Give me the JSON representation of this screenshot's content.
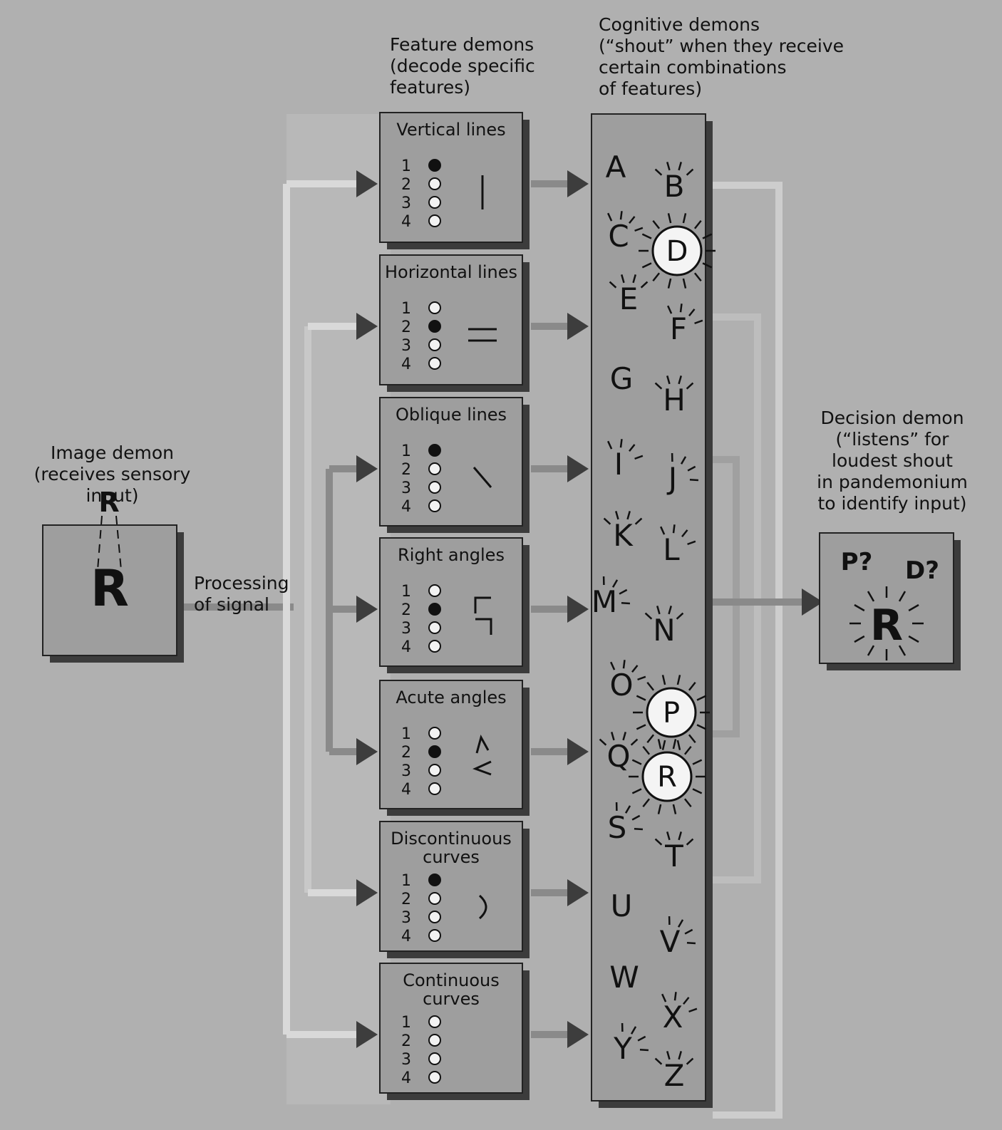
{
  "image_demon": {
    "label_line1": "Image demon",
    "label_line2": "(receives sensory input)",
    "letter": "R"
  },
  "processing": {
    "line1": "Processing",
    "line2": "of signal"
  },
  "feature_header": {
    "line1": "Feature demons",
    "line2": "(decode specific",
    "line3": "features)"
  },
  "cognitive_header": {
    "line1": "Cognitive demons",
    "line2": "(“shout” when they receive",
    "line3": "certain combinations",
    "line4": "of features)"
  },
  "decision_header": {
    "line1": "Decision demon",
    "line2": "(“listens” for",
    "line3": "loudest shout",
    "line4": "in pandemonium",
    "line5": "to identify input)"
  },
  "decision_box": {
    "guess1": "P?",
    "guess2": "D?",
    "answer": "R"
  },
  "features": [
    {
      "title1": "Vertical lines",
      "title2": "",
      "active": 1
    },
    {
      "title1": "Horizontal lines",
      "title2": "",
      "active": 2
    },
    {
      "title1": "Oblique lines",
      "title2": "",
      "active": 1
    },
    {
      "title1": "Right angles",
      "title2": "",
      "active": 2
    },
    {
      "title1": "Acute angles",
      "title2": "",
      "active": 2
    },
    {
      "title1": "Discontinuous",
      "title2": "curves",
      "active": 1
    },
    {
      "title1": "Continuous",
      "title2": "curves",
      "active": 0
    }
  ],
  "row_numbers": [
    "1",
    "2",
    "3",
    "4"
  ],
  "letters": [
    "A",
    "B",
    "C",
    "D",
    "E",
    "F",
    "G",
    "H",
    "I",
    "J",
    "K",
    "L",
    "M",
    "N",
    "O",
    "P",
    "Q",
    "R",
    "S",
    "T",
    "U",
    "V",
    "W",
    "X",
    "Y",
    "Z"
  ],
  "circled_letters": [
    "D",
    "P",
    "R"
  ]
}
